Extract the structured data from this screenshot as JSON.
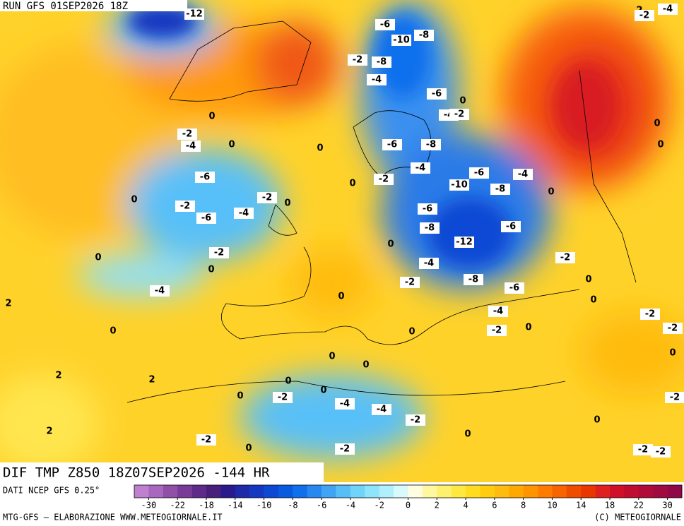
{
  "header": {
    "run": "RUN GFS 01SEP2026 18Z"
  },
  "footer": {
    "field": "DIF TMP Z850 18Z07SEP2026 -144 HR",
    "source": "DATI NCEP GFS 0.25°",
    "credit_left": "MTG-GFS — ELABORAZIONE WWW.METEOGIORNALE.IT",
    "credit_right": "(C) METEOGIORNALE"
  },
  "colorbar": {
    "colors": [
      "#c080d0",
      "#a868c0",
      "#9050a8",
      "#783c98",
      "#602a88",
      "#48207c",
      "#2a1a8c",
      "#1e2aa8",
      "#1438c0",
      "#0c48d4",
      "#0a5ae0",
      "#1070ec",
      "#2888f0",
      "#40a4f4",
      "#58bef8",
      "#70d4fa",
      "#8ee4fa",
      "#b0f0fc",
      "#d8fafc",
      "#fffce0",
      "#fff8a0",
      "#fff070",
      "#ffe840",
      "#ffdc20",
      "#ffcc10",
      "#ffbc10",
      "#ffa800",
      "#ff9400",
      "#ff7c00",
      "#f86400",
      "#f04c00",
      "#e83800",
      "#e02020",
      "#d01028",
      "#c00c30",
      "#b00a38",
      "#a00a40",
      "#900848"
    ],
    "ticks": [
      -30,
      -22,
      -18,
      -14,
      -10,
      -8,
      -6,
      -4,
      -2,
      0,
      2,
      4,
      6,
      8,
      10,
      14,
      18,
      22,
      30
    ]
  },
  "contour_labels": [
    -12,
    -6,
    -10,
    -8,
    -2,
    -8,
    -4,
    -6,
    0,
    -4,
    -2,
    0,
    -2,
    -4,
    0,
    0,
    -6,
    -8,
    -4,
    -6,
    -4,
    -6,
    -2,
    0,
    -10,
    -8,
    0,
    0,
    -2,
    0,
    -2,
    -6,
    -4,
    -6,
    -8,
    -6,
    -12,
    0,
    -2,
    0,
    0,
    -4,
    -2,
    -8,
    -2,
    -6,
    -4,
    0,
    2,
    0,
    -4,
    0,
    0,
    -2,
    0,
    0,
    -2,
    -2,
    0,
    0,
    0,
    2,
    0,
    0,
    0,
    -2,
    -4,
    -4,
    -2,
    -2,
    0,
    2,
    -2,
    0,
    0,
    -2,
    -2,
    -2,
    2,
    2,
    -4,
    -2,
    0,
    0
  ]
}
